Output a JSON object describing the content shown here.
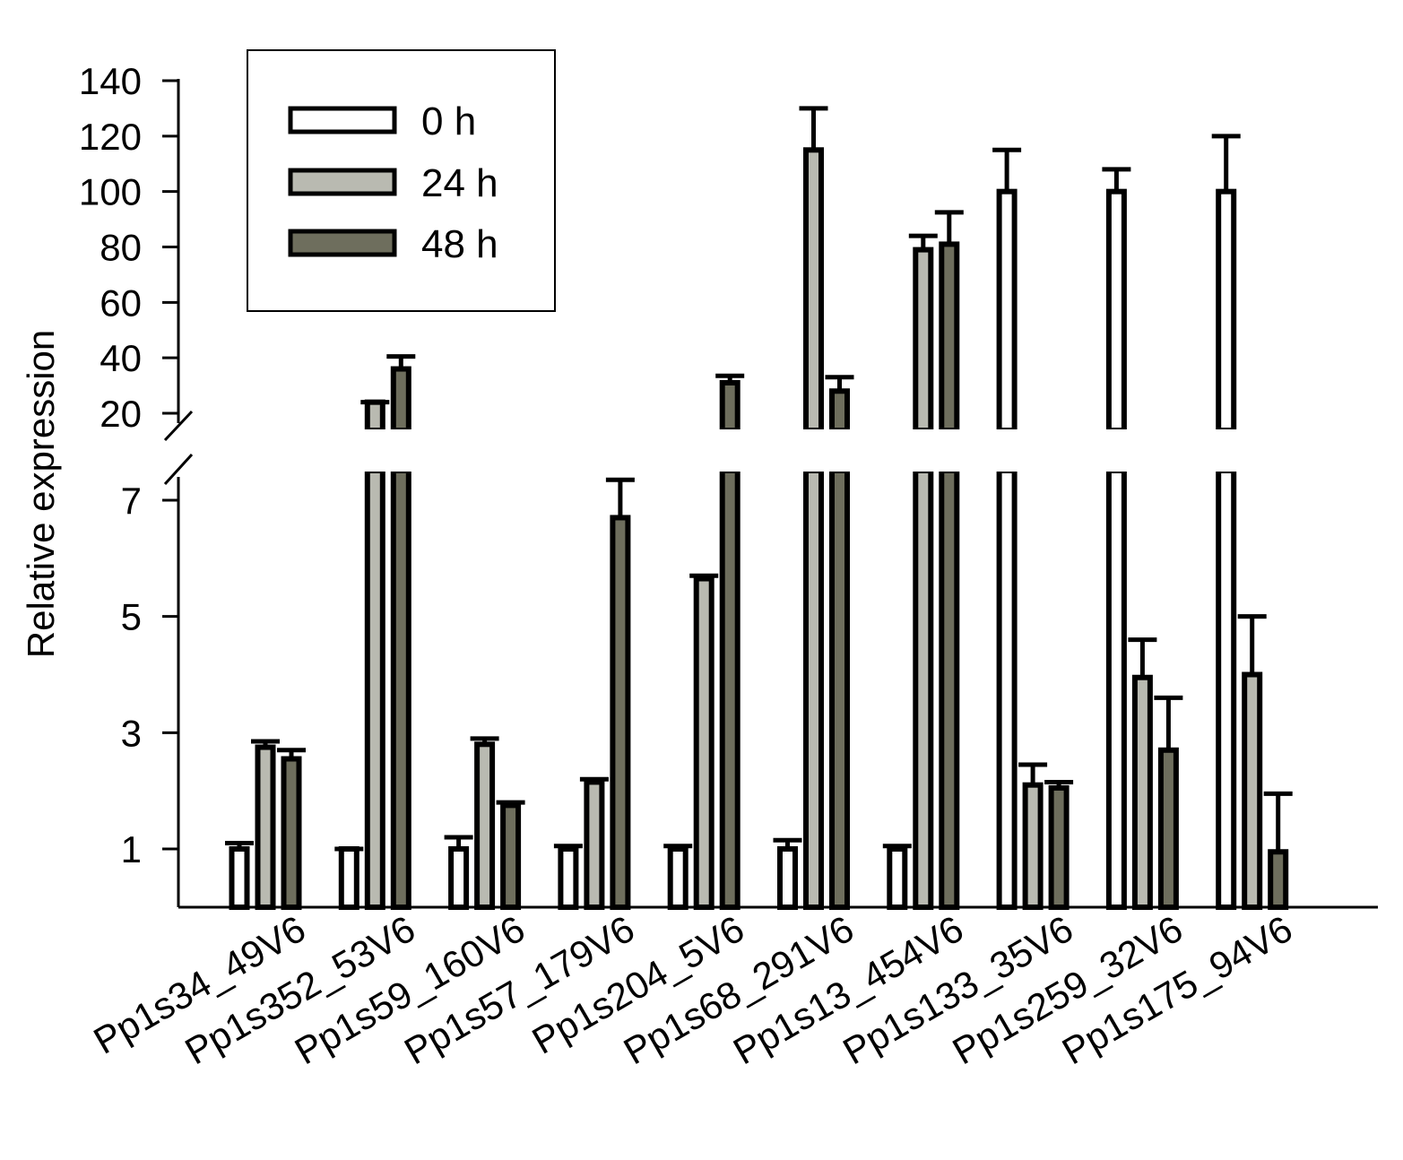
{
  "chart_data": {
    "type": "bar",
    "ylabel": "Relative expression",
    "xlabel": "",
    "title": "",
    "categories": [
      "Pp1s34_49V6",
      "Pp1s352_53V6",
      "Pp1s59_160V6",
      "Pp1s57_179V6",
      "Pp1s204_5V6",
      "Pp1s68_291V6",
      "Pp1s13_454V6",
      "Pp1s133_35V6",
      "Pp1s259_32V6",
      "Pp1s175_94V6"
    ],
    "series": [
      {
        "name": "0 h",
        "color": "#ffffff",
        "values": [
          1.0,
          1.0,
          1.0,
          1.0,
          1.0,
          1.0,
          1.0,
          100,
          100,
          100
        ],
        "errors": [
          0.1,
          0.0,
          0.2,
          0.05,
          0.05,
          0.15,
          0.05,
          15,
          8,
          20
        ]
      },
      {
        "name": "24 h",
        "color": "#b9bab1",
        "values": [
          2.75,
          24,
          2.8,
          2.15,
          5.65,
          115,
          79,
          2.1,
          3.95,
          4.0
        ],
        "errors": [
          0.1,
          0.0,
          0.1,
          0.05,
          0.05,
          15,
          5,
          0.35,
          0.65,
          1.0
        ]
      },
      {
        "name": "48 h",
        "color": "#6e6e5d",
        "values": [
          2.55,
          36,
          1.75,
          6.7,
          31,
          28,
          81,
          2.05,
          2.7,
          0.95
        ],
        "errors": [
          0.15,
          4.5,
          0.05,
          0.65,
          2.5,
          5,
          11.5,
          0.1,
          0.9,
          1.0
        ]
      }
    ],
    "axis_break": true,
    "lower_axis": {
      "ylim": [
        0,
        7.5
      ],
      "ticks": [
        1,
        3,
        5,
        7
      ]
    },
    "upper_axis": {
      "ylim": [
        17,
        140
      ],
      "ticks": [
        20,
        40,
        60,
        80,
        100,
        120,
        140
      ]
    },
    "legend": {
      "position": "top-left",
      "entries": [
        "0 h",
        "24 h",
        "48 h"
      ]
    },
    "grid": false
  }
}
